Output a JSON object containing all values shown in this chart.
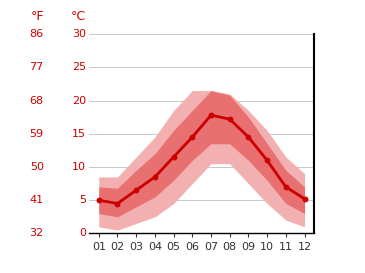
{
  "months": [
    1,
    2,
    3,
    4,
    5,
    6,
    7,
    8,
    9,
    10,
    11,
    12
  ],
  "month_labels": [
    "01",
    "02",
    "03",
    "04",
    "05",
    "06",
    "07",
    "08",
    "09",
    "10",
    "11",
    "12"
  ],
  "mean_temp": [
    5.0,
    4.5,
    6.5,
    8.5,
    11.5,
    14.5,
    17.8,
    17.2,
    14.5,
    11.0,
    7.0,
    5.2
  ],
  "upper_inner": [
    7.0,
    6.8,
    9.5,
    12.0,
    15.5,
    18.5,
    21.5,
    20.8,
    17.5,
    13.5,
    9.5,
    7.0
  ],
  "lower_inner": [
    3.0,
    2.5,
    4.0,
    5.5,
    8.0,
    11.0,
    13.5,
    13.5,
    11.0,
    8.0,
    4.5,
    3.0
  ],
  "upper_outer": [
    8.5,
    8.5,
    11.5,
    14.5,
    18.5,
    21.5,
    21.5,
    21.0,
    18.5,
    15.5,
    11.5,
    9.0
  ],
  "lower_outer": [
    1.0,
    0.5,
    1.5,
    2.5,
    4.5,
    7.5,
    10.5,
    10.5,
    7.5,
    4.5,
    2.0,
    1.0
  ],
  "line_color": "#cc0000",
  "inner_band_color": "#e87070",
  "outer_band_color": "#f2b0b0",
  "background_color": "#ffffff",
  "grid_color": "#c8c8c8",
  "label_color": "#cc0000",
  "ylim_min": 0,
  "ylim_max": 30,
  "yticks_c": [
    0,
    5,
    10,
    15,
    20,
    25,
    30
  ],
  "yticks_f": [
    32,
    41,
    50,
    59,
    68,
    77,
    86
  ],
  "title_f": "°F",
  "title_c": "°C",
  "font_size_labels": 9,
  "font_size_ticks": 8
}
